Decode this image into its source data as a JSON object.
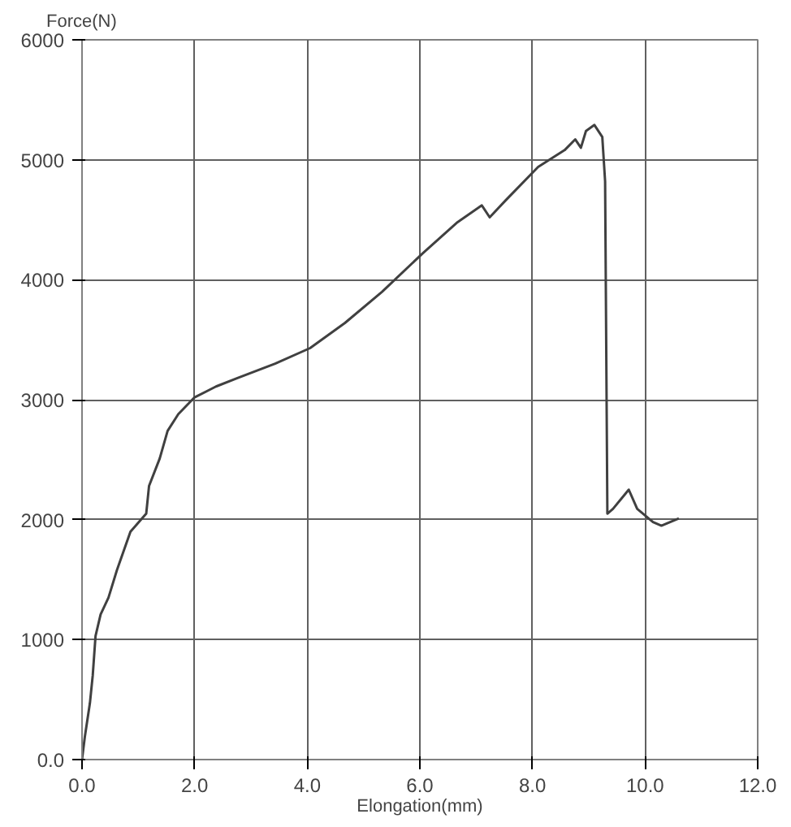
{
  "chart_data": {
    "type": "line",
    "xlabel": "Elongation(mm)",
    "ylabel": "Force(N)",
    "x": [
      0,
      0.05,
      0.14,
      0.19,
      0.24,
      0.33,
      0.47,
      0.62,
      0.86,
      1.14,
      1.19,
      1.38,
      1.52,
      1.71,
      2.0,
      2.38,
      2.76,
      3.43,
      4.05,
      4.67,
      5.33,
      6.05,
      6.67,
      7.1,
      7.24,
      7.52,
      8.1,
      8.57,
      8.76,
      8.86,
      8.95,
      9.1,
      9.24,
      9.29,
      9.33,
      9.43,
      9.71,
      9.86,
      10.14,
      10.29,
      10.6
    ],
    "series": [
      {
        "color": "#404040",
        "values": [
          0,
          190,
          470,
          700,
          1030,
          1210,
          1350,
          1580,
          1900,
          2050,
          2280,
          2510,
          2740,
          2880,
          3020,
          3110,
          3180,
          3300,
          3430,
          3640,
          3900,
          4220,
          4480,
          4620,
          4520,
          4660,
          4940,
          5080,
          5170,
          5100,
          5240,
          5290,
          5190,
          4820,
          2050,
          2090,
          2250,
          2090,
          1980,
          1950,
          2010
        ]
      }
    ],
    "xlim": [
      0,
      12
    ],
    "ylim": [
      0,
      6000
    ],
    "xticks": [
      {
        "value": 0,
        "label": "0.0"
      },
      {
        "value": 2,
        "label": "2.0"
      },
      {
        "value": 4,
        "label": "4.0"
      },
      {
        "value": 6,
        "label": "6.0"
      },
      {
        "value": 8,
        "label": "8.0"
      },
      {
        "value": 10,
        "label": "10.0"
      },
      {
        "value": 12,
        "label": "12.0"
      }
    ],
    "yticks": [
      {
        "value": 0,
        "label": "0.0"
      },
      1000,
      2000,
      3000,
      4000,
      5000,
      6000
    ],
    "grid": true,
    "marker": "none",
    "line_style": "solid"
  }
}
